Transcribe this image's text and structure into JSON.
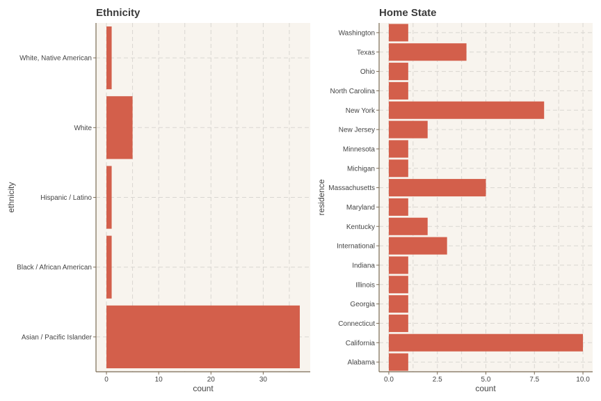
{
  "colors": {
    "bar": "#d35f4b",
    "panel_bg": "#f8f4ee"
  },
  "chart_data": [
    {
      "type": "bar",
      "orientation": "horizontal",
      "title": "Ethnicity",
      "xlabel": "count",
      "ylabel": "ethnicity",
      "categories": [
        "Asian / Pacific Islander",
        "Black / African American",
        "Hispanic / Latino",
        "White",
        "White, Native American"
      ],
      "values": [
        37,
        1,
        1,
        5,
        1
      ],
      "xlim": [
        -2,
        39
      ],
      "xticks": [
        0,
        10,
        20,
        30
      ],
      "xtick_labels": [
        "0",
        "10",
        "20",
        "30"
      ],
      "grid": true
    },
    {
      "type": "bar",
      "orientation": "horizontal",
      "title": "Home State",
      "xlabel": "count",
      "ylabel": "residence",
      "categories": [
        "Alabama",
        "California",
        "Connecticut",
        "Georgia",
        "Illinois",
        "Indiana",
        "International",
        "Kentucky",
        "Maryland",
        "Massachusetts",
        "Michigan",
        "Minnesota",
        "New Jersey",
        "New York",
        "North Carolina",
        "Ohio",
        "Texas",
        "Washington"
      ],
      "values": [
        1,
        10,
        1,
        1,
        1,
        1,
        3,
        2,
        1,
        5,
        1,
        1,
        2,
        8,
        1,
        1,
        4,
        1
      ],
      "xlim": [
        -0.5,
        10.5
      ],
      "xticks": [
        0,
        2.5,
        5,
        7.5,
        10
      ],
      "xtick_labels": [
        "0.0",
        "2.5",
        "5.0",
        "7.5",
        "10.0"
      ],
      "grid": true
    }
  ]
}
